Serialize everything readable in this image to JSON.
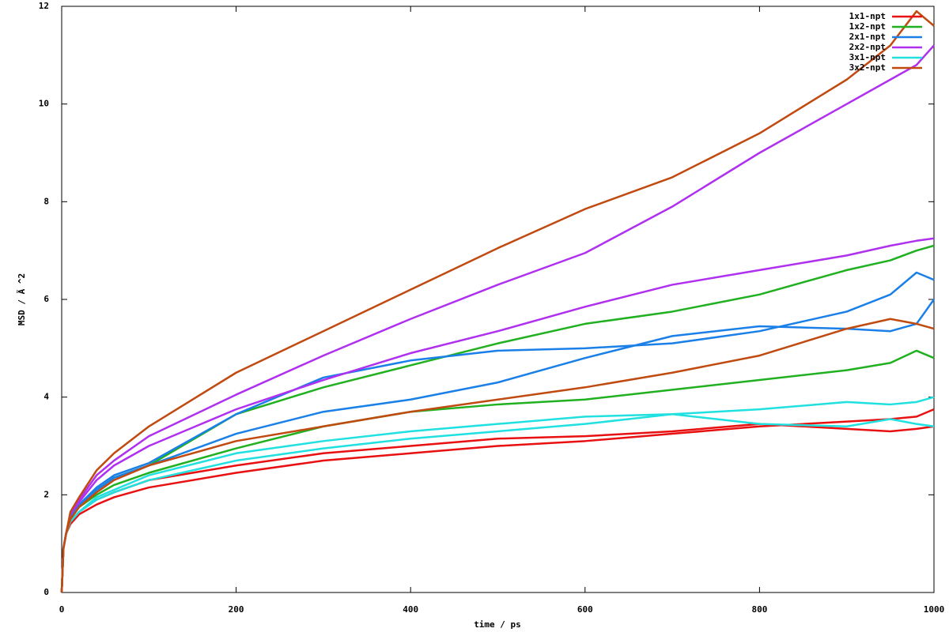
{
  "chart_data": {
    "type": "line",
    "xlabel": "time / ps",
    "ylabel": "MSD / Ã ^2",
    "x": [
      0,
      2,
      5,
      10,
      20,
      40,
      60,
      100,
      200,
      300,
      400,
      500,
      600,
      700,
      800,
      900,
      950,
      980,
      1000
    ],
    "series": [
      {
        "name": "1x1-npt",
        "color": "#e81010",
        "values": [
          0,
          0.9,
          1.2,
          1.4,
          1.6,
          1.8,
          1.95,
          2.15,
          2.45,
          2.7,
          2.85,
          3.0,
          3.1,
          3.25,
          3.4,
          3.5,
          3.55,
          3.6,
          3.75
        ]
      },
      {
        "name": null,
        "color": "#e81010",
        "values": [
          0,
          0.9,
          1.2,
          1.45,
          1.65,
          1.9,
          2.05,
          2.3,
          2.6,
          2.85,
          3.0,
          3.15,
          3.2,
          3.3,
          3.45,
          3.35,
          3.3,
          3.35,
          3.4
        ]
      },
      {
        "name": "1x2-npt",
        "color": "#20b020",
        "values": [
          0,
          0.9,
          1.2,
          1.55,
          1.8,
          2.1,
          2.35,
          2.6,
          3.65,
          4.2,
          4.65,
          5.1,
          5.5,
          5.75,
          6.1,
          6.6,
          6.8,
          7.0,
          7.1
        ]
      },
      {
        "name": null,
        "color": "#20b020",
        "values": [
          0,
          0.9,
          1.2,
          1.5,
          1.75,
          2.0,
          2.2,
          2.45,
          2.95,
          3.4,
          3.7,
          3.85,
          3.95,
          4.15,
          4.35,
          4.55,
          4.7,
          4.95,
          4.8
        ]
      },
      {
        "name": "2x1-npt",
        "color": "#1a80e8",
        "values": [
          0,
          0.9,
          1.2,
          1.55,
          1.8,
          2.15,
          2.4,
          2.65,
          3.65,
          4.4,
          4.75,
          4.95,
          5.0,
          5.1,
          5.35,
          5.75,
          6.1,
          6.55,
          6.4
        ]
      },
      {
        "name": null,
        "color": "#1a80e8",
        "values": [
          0,
          0.9,
          1.2,
          1.55,
          1.8,
          2.1,
          2.35,
          2.6,
          3.25,
          3.7,
          3.95,
          4.3,
          4.8,
          5.25,
          5.45,
          5.4,
          5.35,
          5.5,
          6.0
        ]
      },
      {
        "name": "2x2-npt",
        "color": "#b030f0",
        "values": [
          0,
          0.9,
          1.2,
          1.6,
          1.9,
          2.4,
          2.7,
          3.2,
          4.05,
          4.85,
          5.6,
          6.3,
          6.95,
          7.9,
          9.0,
          10.0,
          10.5,
          10.8,
          11.2
        ]
      },
      {
        "name": null,
        "color": "#b030f0",
        "values": [
          0,
          0.9,
          1.2,
          1.6,
          1.85,
          2.3,
          2.6,
          3.0,
          3.75,
          4.35,
          4.9,
          5.35,
          5.85,
          6.3,
          6.6,
          6.9,
          7.1,
          7.2,
          7.25
        ]
      },
      {
        "name": "3x1-npt",
        "color": "#20e0e0",
        "values": [
          0,
          0.9,
          1.2,
          1.45,
          1.65,
          1.95,
          2.1,
          2.4,
          2.85,
          3.1,
          3.3,
          3.45,
          3.6,
          3.65,
          3.75,
          3.9,
          3.85,
          3.9,
          4.0
        ]
      },
      {
        "name": null,
        "color": "#20e0e0",
        "values": [
          0,
          0.9,
          1.2,
          1.45,
          1.65,
          1.9,
          2.05,
          2.3,
          2.7,
          2.95,
          3.15,
          3.3,
          3.45,
          3.65,
          3.45,
          3.4,
          3.55,
          3.45,
          3.4
        ]
      },
      {
        "name": "3x2-npt",
        "color": "#c04a10",
        "values": [
          0,
          0.9,
          1.2,
          1.65,
          1.95,
          2.5,
          2.85,
          3.4,
          4.5,
          5.35,
          6.2,
          7.05,
          7.85,
          8.5,
          9.4,
          10.5,
          11.2,
          11.9,
          11.6
        ]
      },
      {
        "name": null,
        "color": "#c04a10",
        "values": [
          0,
          0.9,
          1.2,
          1.5,
          1.75,
          2.05,
          2.3,
          2.6,
          3.1,
          3.4,
          3.7,
          3.95,
          4.2,
          4.5,
          4.85,
          5.4,
          5.6,
          5.5,
          5.4
        ]
      }
    ],
    "xlim": [
      0,
      1000
    ],
    "xticks": [
      0,
      200,
      400,
      600,
      800,
      1000
    ],
    "ylim": [
      0,
      12
    ],
    "yticks": [
      0,
      2,
      4,
      6,
      8,
      10,
      12
    ],
    "legend": "top-right"
  }
}
